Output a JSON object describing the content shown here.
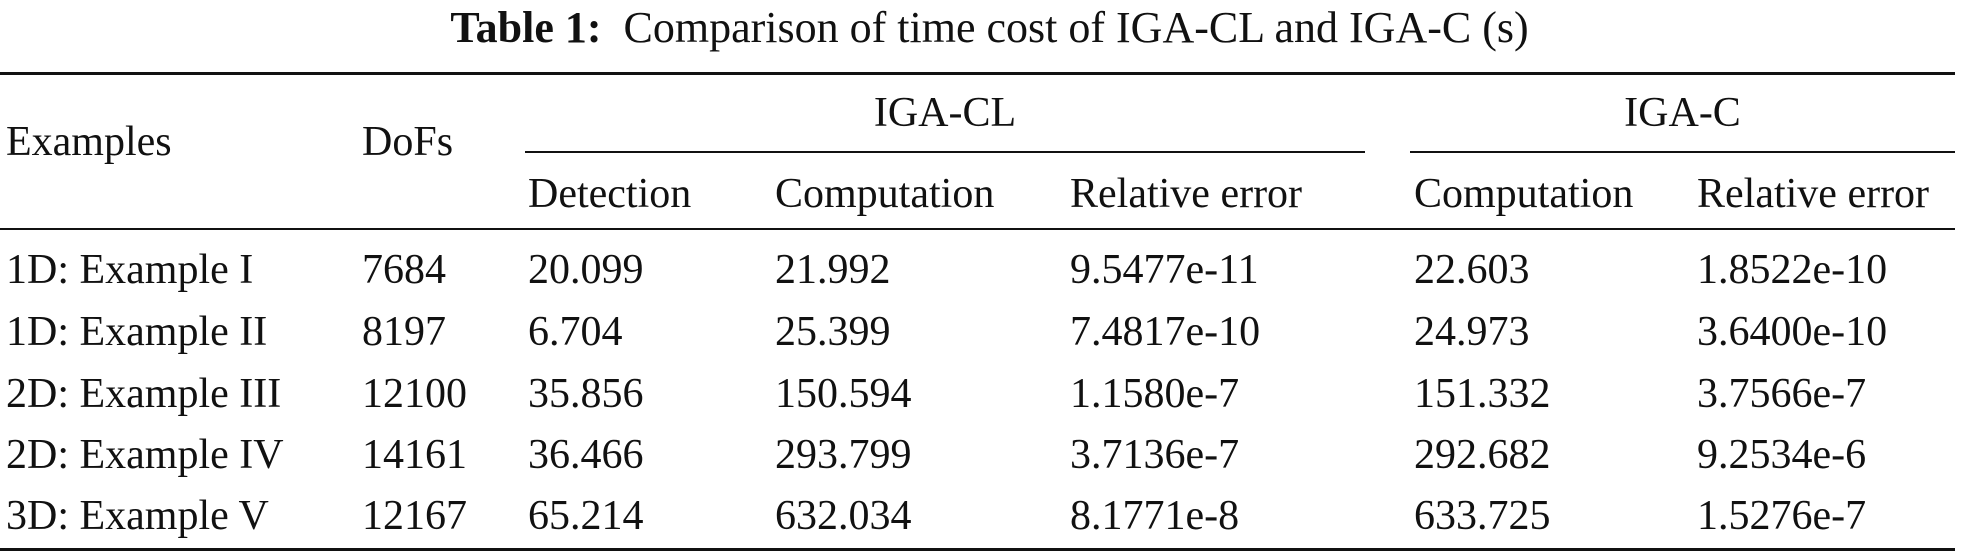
{
  "caption": {
    "label": "Table 1:",
    "text": "Comparison of time cost of IGA-CL and IGA-C (s)"
  },
  "table": {
    "headers": {
      "examples": "Examples",
      "dofs": "DoFs",
      "group_cl": "IGA-CL",
      "group_c": "IGA-C",
      "cl_detection": "Detection",
      "cl_computation": "Computation",
      "cl_relative_error": "Relative error",
      "c_computation": "Computation",
      "c_relative_error": "Relative error"
    },
    "rows": [
      [
        "1D: Example I",
        "7684",
        "20.099",
        "21.992",
        "9.5477e-11",
        "22.603",
        "1.8522e-10"
      ],
      [
        "1D: Example II",
        "8197",
        "6.704",
        "25.399",
        "7.4817e-10",
        "24.973",
        "3.6400e-10"
      ],
      [
        "2D: Example III",
        "12100",
        "35.856",
        "150.594",
        "1.1580e-7",
        "151.332",
        "3.7566e-7"
      ],
      [
        "2D: Example IV",
        "14161",
        "36.466",
        "293.799",
        "3.7136e-7",
        "292.682",
        "9.2534e-6"
      ],
      [
        "3D: Example V",
        "12167",
        "65.214",
        "632.034",
        "8.1771e-8",
        "633.725",
        "1.5276e-7"
      ]
    ]
  }
}
